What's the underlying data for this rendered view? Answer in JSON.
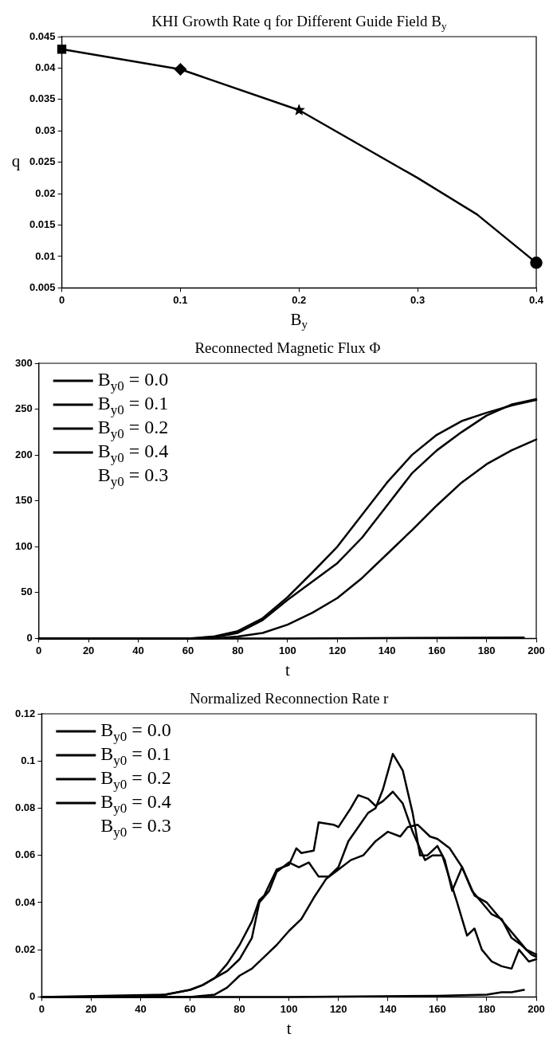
{
  "chart_data": [
    {
      "type": "line",
      "title": "KHI Growth Rate q for Different Guide Field B$_{y}$",
      "xlabel": "B$_{y}$",
      "ylabel": "q",
      "xlim": [
        0,
        0.4
      ],
      "xticks": [
        0,
        0.1,
        0.2,
        0.3,
        0.4
      ],
      "ylim": [
        0.005,
        0.045
      ],
      "yticks": [
        0.005,
        0.01,
        0.015,
        0.02,
        0.025,
        0.03,
        0.035,
        0.04,
        0.045
      ],
      "grid": false,
      "legend": false,
      "series": [
        {
          "color": "#000000",
          "x": [
            0,
            0.1,
            0.2,
            0.3,
            0.35,
            0.4
          ],
          "values": [
            0.043,
            0.0398,
            0.0333,
            0.0225,
            0.0167,
            0.009
          ]
        },
        {
          "type": "scatter",
          "marker": "square",
          "color": "#000000",
          "x": [
            0
          ],
          "values": [
            0.043
          ]
        },
        {
          "type": "scatter",
          "marker": "diamond",
          "color": "#000000",
          "x": [
            0.1
          ],
          "values": [
            0.0398
          ]
        },
        {
          "type": "scatter",
          "marker": "star",
          "color": "#000000",
          "x": [
            0.2
          ],
          "values": [
            0.0333
          ]
        },
        {
          "type": "scatter",
          "marker": "circle",
          "color": "#000000",
          "x": [
            0.4
          ],
          "values": [
            0.009
          ]
        }
      ]
    },
    {
      "type": "line",
      "title": "Reconnected Magnetic Flux Φ",
      "xlabel": "t",
      "xlim": [
        0,
        200
      ],
      "xticks": [
        0,
        20,
        40,
        60,
        80,
        100,
        120,
        140,
        160,
        180,
        200
      ],
      "ylim": [
        0,
        300
      ],
      "yticks": [
        0,
        50,
        100,
        150,
        200,
        250,
        300
      ],
      "grid": false,
      "legend": "top left",
      "series": [
        {
          "name": "B$_{y0}$ = 0.0",
          "color": "#000000",
          "x": [
            0,
            60,
            70,
            80,
            90,
            100,
            110,
            120,
            130,
            140,
            150,
            160,
            170,
            180,
            190,
            200
          ],
          "values": [
            0,
            0,
            2,
            8,
            22,
            45,
            72,
            100,
            135,
            170,
            200,
            222,
            237,
            246,
            254,
            260
          ]
        },
        {
          "name": "B$_{y0}$ = 0.1",
          "color": "#000000",
          "x": [
            60,
            70,
            80,
            90,
            100,
            110,
            120,
            130,
            140,
            150,
            160,
            170,
            180,
            190,
            200
          ],
          "values": [
            0,
            1,
            6,
            20,
            42,
            62,
            82,
            110,
            145,
            180,
            205,
            225,
            243,
            255,
            261
          ]
        },
        {
          "name": "B$_{y0}$ = 0.2",
          "color": "#000000",
          "x": [
            0,
            60,
            70,
            80,
            90,
            100,
            110,
            120,
            130,
            140,
            150,
            160,
            170,
            180,
            190,
            200
          ],
          "values": [
            0,
            0,
            0,
            2,
            6,
            15,
            28,
            44,
            66,
            92,
            118,
            145,
            170,
            190,
            205,
            217
          ]
        },
        {
          "name": "B$_{y0}$ = 0.4",
          "color": "#000000",
          "x": [
            0,
            100,
            195
          ],
          "values": [
            0,
            0,
            1
          ]
        }
      ],
      "annotations": [
        "B$_{y0}$ = 0.3"
      ]
    },
    {
      "type": "line",
      "title": "Normalized Reconnection Rate r",
      "xlabel": "t",
      "xlim": [
        0,
        200
      ],
      "xticks": [
        0,
        20,
        40,
        60,
        80,
        100,
        120,
        140,
        160,
        180,
        200
      ],
      "ylim": [
        0,
        0.12
      ],
      "yticks": [
        0,
        0.02,
        0.04,
        0.06,
        0.08,
        0.1,
        0.12
      ],
      "grid": false,
      "legend": "top left",
      "series": [
        {
          "name": "B$_{y0}$ = 0.0",
          "color": "#000000",
          "x": [
            0,
            40,
            50,
            60,
            65,
            70,
            75,
            80,
            85,
            88,
            90,
            95,
            100,
            103,
            105,
            110,
            112,
            118,
            120,
            125,
            128,
            132,
            135,
            138,
            142,
            146,
            150,
            155,
            158,
            162,
            165,
            168,
            170,
            172,
            175,
            178,
            182,
            186,
            190,
            193,
            197,
            200
          ],
          "values": [
            0,
            0,
            0.001,
            0.003,
            0.005,
            0.008,
            0.014,
            0.022,
            0.032,
            0.041,
            0.043,
            0.054,
            0.056,
            0.063,
            0.061,
            0.062,
            0.074,
            0.073,
            0.072,
            0.08,
            0.0855,
            0.084,
            0.081,
            0.083,
            0.087,
            0.082,
            0.07,
            0.058,
            0.06,
            0.06,
            0.05,
            0.04,
            0.033,
            0.026,
            0.029,
            0.02,
            0.015,
            0.013,
            0.012,
            0.02,
            0.015,
            0.016
          ]
        },
        {
          "name": "B$_{y0}$ = 0.1",
          "color": "#000000",
          "x": [
            0,
            50,
            60,
            65,
            70,
            75,
            80,
            85,
            88,
            92,
            95,
            100,
            104,
            108,
            112,
            116,
            120,
            124,
            128,
            132,
            135,
            138,
            142,
            146,
            150,
            153,
            156,
            160,
            163,
            166,
            170,
            174,
            178,
            182,
            186,
            190,
            194,
            198,
            200
          ],
          "values": [
            0,
            0.001,
            0.003,
            0.005,
            0.008,
            0.011,
            0.016,
            0.025,
            0.04,
            0.045,
            0.053,
            0.057,
            0.055,
            0.057,
            0.051,
            0.051,
            0.055,
            0.066,
            0.072,
            0.078,
            0.08,
            0.088,
            0.103,
            0.096,
            0.078,
            0.06,
            0.06,
            0.064,
            0.058,
            0.045,
            0.055,
            0.045,
            0.04,
            0.035,
            0.033,
            0.025,
            0.022,
            0.018,
            0.017
          ]
        },
        {
          "name": "B$_{y0}$ = 0.2",
          "color": "#000000",
          "x": [
            0,
            60,
            70,
            75,
            80,
            85,
            90,
            95,
            100,
            105,
            110,
            115,
            120,
            125,
            130,
            135,
            140,
            145,
            148,
            152,
            157,
            160,
            165,
            170,
            175,
            180,
            184,
            188,
            192,
            196,
            200
          ],
          "values": [
            0,
            0,
            0.001,
            0.004,
            0.009,
            0.012,
            0.017,
            0.022,
            0.028,
            0.033,
            0.042,
            0.05,
            0.054,
            0.058,
            0.06,
            0.066,
            0.07,
            0.068,
            0.072,
            0.073,
            0.068,
            0.067,
            0.063,
            0.055,
            0.043,
            0.04,
            0.035,
            0.03,
            0.025,
            0.02,
            0.018
          ]
        },
        {
          "name": "B$_{y0}$ = 0.4",
          "color": "#000000",
          "x": [
            0,
            100,
            160,
            180,
            186,
            190,
            195
          ],
          "values": [
            0,
            0,
            0.0005,
            0.001,
            0.002,
            0.002,
            0.003
          ]
        }
      ],
      "annotations": [
        "B$_{y0}$ = 0.3"
      ]
    }
  ]
}
